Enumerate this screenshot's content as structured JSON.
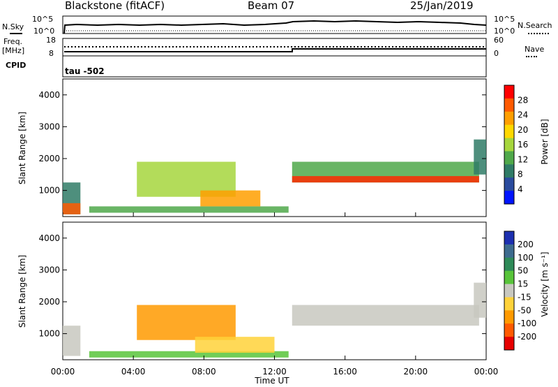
{
  "header": {
    "station": "Blackstone (fitACF)",
    "beam": "Beam 07",
    "date": "25/Jan/2019"
  },
  "top_panel": {
    "nsky_label": "N.Sky",
    "nsearch_label": "N.Search",
    "left_ticks": [
      "10^5",
      "10^0"
    ],
    "right_ticks": [
      "10^5",
      "10^0"
    ]
  },
  "freq_panel": {
    "freq_label": "Freq.",
    "unit_label": "[MHz]",
    "nave_label": "Nave",
    "left_ticks": [
      "18",
      "8"
    ],
    "right_ticks": [
      "60",
      "0"
    ],
    "cpid_label": "CPID",
    "cpid_value": "tau -502"
  },
  "power_panel": {
    "ylabel": "Slant Range [km]",
    "colorbar_label": "Power [dB]",
    "colorbar_ticks": [
      "28",
      "24",
      "20",
      "16",
      "12",
      "8",
      "4"
    ],
    "colorbar_colors": [
      "#ff0000",
      "#ff5a00",
      "#ff9f00",
      "#ffd800",
      "#a6d63d",
      "#4fa84a",
      "#2f7b66",
      "#2a4b9e",
      "#0014ff"
    ]
  },
  "velocity_panel": {
    "ylabel": "Slant Range [km]",
    "colorbar_label": "Velocity [m s⁻¹]",
    "colorbar_ticks": [
      "200",
      "100",
      "50",
      "15",
      "-15",
      "-50",
      "-100",
      "-200"
    ],
    "colorbar_colors": [
      "#1c2fb0",
      "#3d6b8e",
      "#2e8a58",
      "#58c43a",
      "#c8c8c0",
      "#ffd23a",
      "#ff9a00",
      "#ff5a00",
      "#e60000"
    ]
  },
  "time_axis": {
    "xlabel": "Time UT",
    "ticks": [
      "00:00",
      "04:00",
      "08:00",
      "12:00",
      "16:00",
      "20:00",
      "00:00"
    ]
  },
  "chart_data": {
    "type": "heatmap",
    "x_unit": "hours UT",
    "xlim": [
      0,
      24
    ],
    "ylim": [
      180,
      4500
    ],
    "y_ticks": [
      1000,
      2000,
      3000,
      4000
    ],
    "power_features": [
      {
        "t0": 0.0,
        "t1": 1.0,
        "r0": 250,
        "r1": 1250,
        "color": "#2f7b66"
      },
      {
        "t0": 0.0,
        "t1": 1.0,
        "r0": 250,
        "r1": 600,
        "color": "#ff5a00"
      },
      {
        "t0": 1.5,
        "t1": 12.8,
        "r0": 300,
        "r1": 500,
        "color": "#4fa84a"
      },
      {
        "t0": 4.2,
        "t1": 9.8,
        "r0": 800,
        "r1": 1900,
        "color": "#a6d63d"
      },
      {
        "t0": 7.8,
        "t1": 11.2,
        "r0": 500,
        "r1": 1000,
        "color": "#ff9f00"
      },
      {
        "t0": 13.0,
        "t1": 23.6,
        "r0": 1250,
        "r1": 1900,
        "color": "#4fa84a"
      },
      {
        "t0": 13.0,
        "t1": 23.6,
        "r0": 1250,
        "r1": 1450,
        "color": "#ff2a00"
      },
      {
        "t0": 23.3,
        "t1": 24.0,
        "r0": 1500,
        "r1": 2600,
        "color": "#2f7b66"
      }
    ],
    "velocity_features": [
      {
        "t0": 0.0,
        "t1": 1.0,
        "r0": 300,
        "r1": 1250,
        "color": "#c8c8c0"
      },
      {
        "t0": 1.5,
        "t1": 12.8,
        "r0": 250,
        "r1": 450,
        "color": "#58c43a"
      },
      {
        "t0": 4.2,
        "t1": 9.8,
        "r0": 800,
        "r1": 1900,
        "color": "#ff9a00"
      },
      {
        "t0": 7.5,
        "t1": 12.0,
        "r0": 400,
        "r1": 900,
        "color": "#ffd23a"
      },
      {
        "t0": 13.0,
        "t1": 23.6,
        "r0": 1250,
        "r1": 1900,
        "color": "#c8c8c0"
      },
      {
        "t0": 23.3,
        "t1": 24.0,
        "r0": 1500,
        "r1": 2600,
        "color": "#c8c8c0"
      }
    ]
  }
}
